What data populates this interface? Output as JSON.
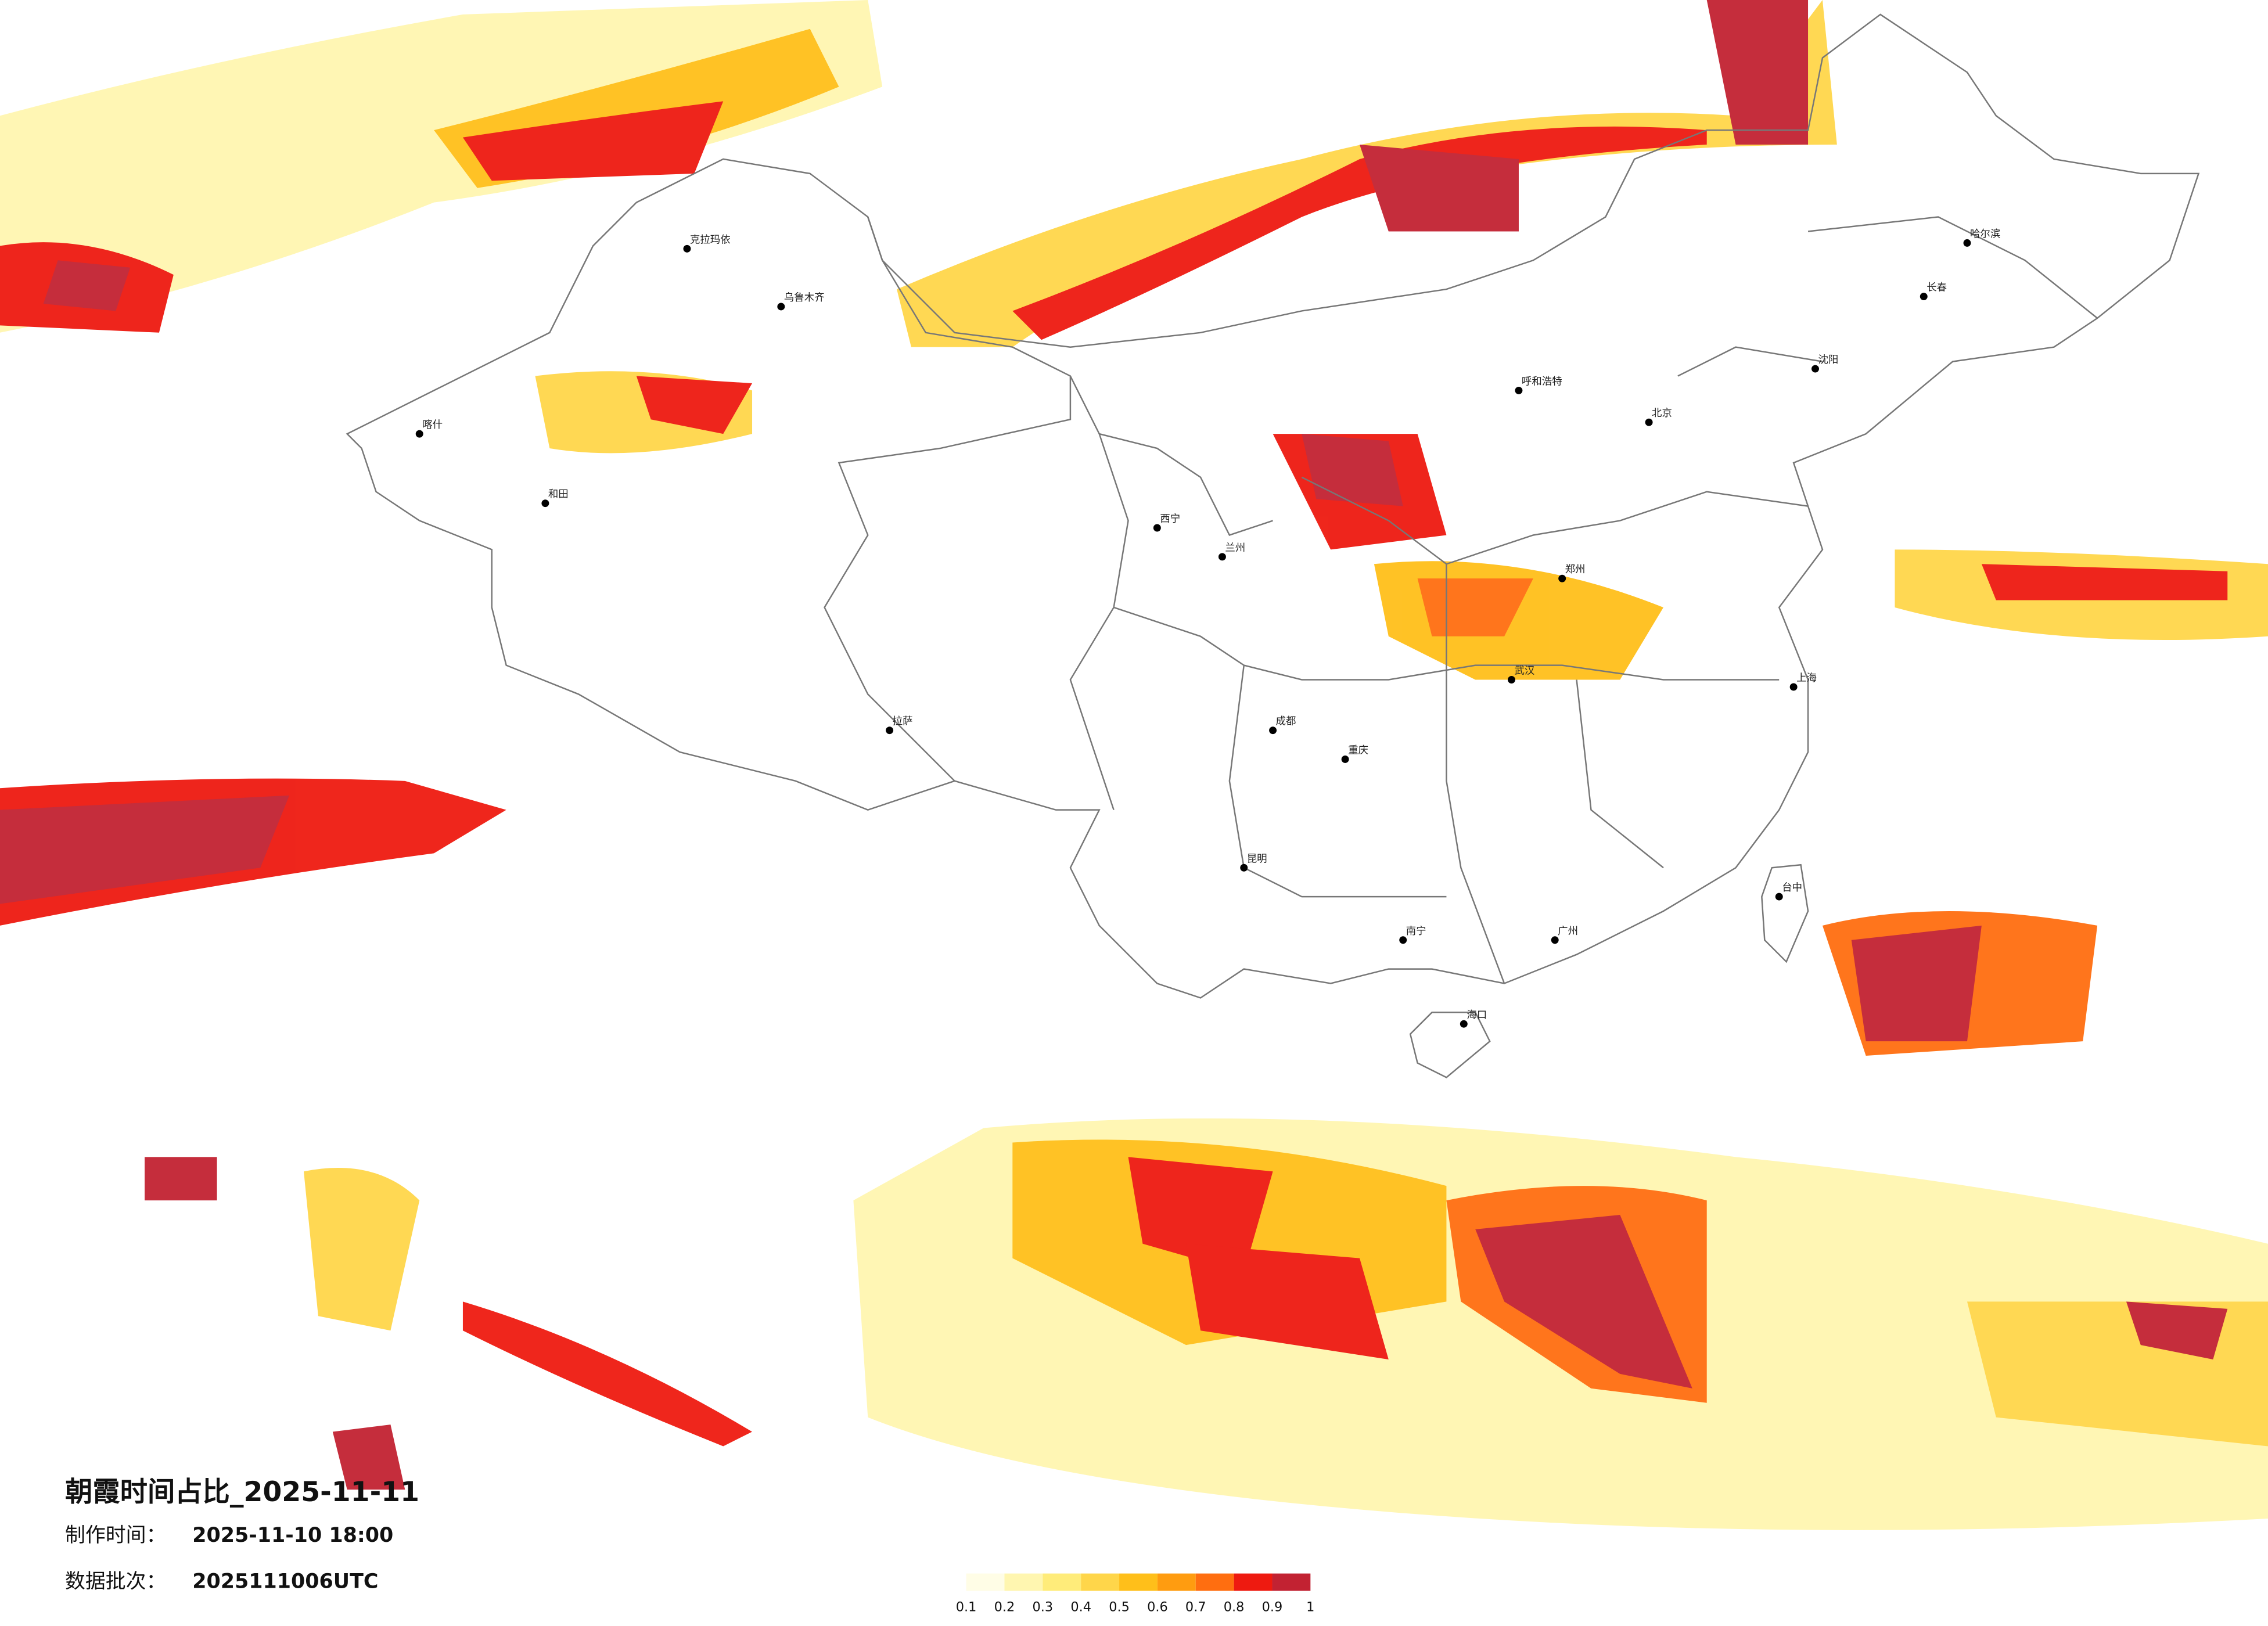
{
  "header": {
    "title": "朝霞时间占比_2025-11-11",
    "made_label": "制作时间：",
    "made_value": "2025-11-10 18:00",
    "batch_label": "数据批次：",
    "batch_value": "2025111006UTC"
  },
  "legend": {
    "colors": [
      "#fffde6",
      "#fff6b0",
      "#ffec7a",
      "#ffd64a",
      "#ffbf1a",
      "#ff9c10",
      "#ff6e10",
      "#ee1a10",
      "#c22232"
    ],
    "ticks": [
      0.1,
      0.2,
      0.3,
      0.4,
      0.5,
      0.6,
      0.7,
      0.8,
      0.9,
      1
    ]
  },
  "cities": [
    "克拉玛依",
    "乌鲁木齐",
    "喀什",
    "和田",
    "拉萨",
    "西宁",
    "兰州",
    "呼和浩特",
    "北京",
    "哈尔滨",
    "长春",
    "沈阳",
    "郑州",
    "武汉",
    "成都",
    "重庆",
    "昆明",
    "南宁",
    "广州",
    "上海",
    "台中",
    "海口"
  ]
}
